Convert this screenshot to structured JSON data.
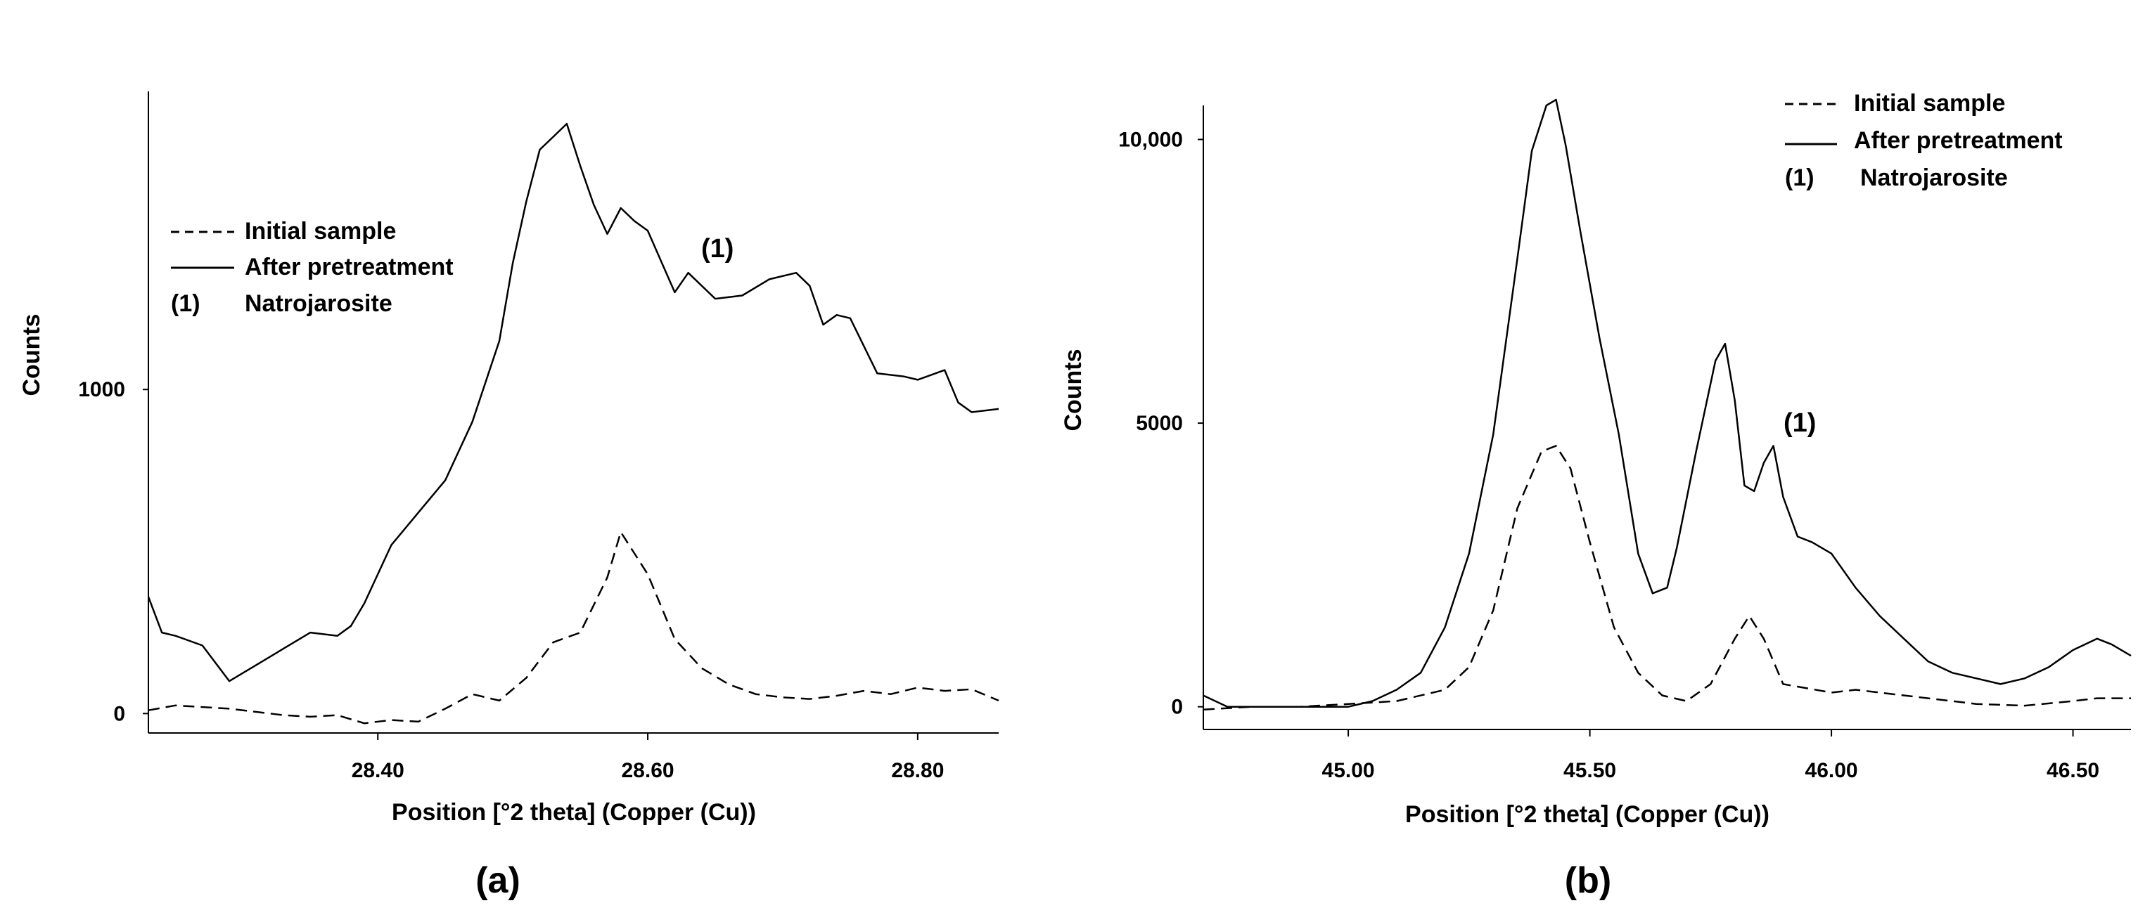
{
  "chart_data": [
    {
      "type": "line",
      "panel_label": "(a)",
      "xlabel": "Position [°2 theta] (Copper (Cu))",
      "ylabel": "Counts",
      "xlim": [
        28.23,
        28.86
      ],
      "ylim": [
        -60,
        1920
      ],
      "xticks": [
        "28.40",
        "28.60",
        "28.80"
      ],
      "xtick_values": [
        28.4,
        28.6,
        28.8
      ],
      "yticks": [
        "0",
        "1000"
      ],
      "ytick_values": [
        0,
        1000
      ],
      "grid": false,
      "legend_position": "left-middle",
      "legend": {
        "initial": "Initial sample",
        "after": "After pretreatment",
        "natro_key": "(1)",
        "natro_label": "Natrojarosite"
      },
      "annotations": [
        {
          "text": "(1)",
          "x": 28.65,
          "y": 1480
        }
      ],
      "series": [
        {
          "name": "Initial sample",
          "style": "dashed",
          "x": [
            28.23,
            28.25,
            28.27,
            28.29,
            28.31,
            28.33,
            28.35,
            28.37,
            28.39,
            28.41,
            28.43,
            28.45,
            28.47,
            28.49,
            28.51,
            28.53,
            28.55,
            28.57,
            28.58,
            28.6,
            28.62,
            28.64,
            28.66,
            28.68,
            28.7,
            28.72,
            28.74,
            28.76,
            28.78,
            28.8,
            28.82,
            28.84,
            28.86
          ],
          "y": [
            10,
            25,
            20,
            15,
            5,
            -5,
            -10,
            -5,
            -30,
            -20,
            -25,
            15,
            60,
            40,
            110,
            220,
            250,
            420,
            560,
            430,
            230,
            140,
            90,
            60,
            50,
            45,
            55,
            70,
            60,
            80,
            70,
            75,
            40
          ]
        },
        {
          "name": "After pretreatment",
          "style": "solid",
          "x": [
            28.23,
            28.24,
            28.25,
            28.27,
            28.29,
            28.31,
            28.33,
            28.35,
            28.37,
            28.38,
            28.39,
            28.41,
            28.43,
            28.45,
            28.47,
            28.49,
            28.5,
            28.51,
            28.52,
            28.53,
            28.54,
            28.55,
            28.56,
            28.57,
            28.58,
            28.59,
            28.6,
            28.62,
            28.63,
            28.65,
            28.67,
            28.69,
            28.71,
            28.72,
            28.73,
            28.74,
            28.75,
            28.77,
            28.79,
            28.8,
            28.82,
            28.83,
            28.84,
            28.86
          ],
          "y": [
            360,
            250,
            240,
            210,
            100,
            150,
            200,
            250,
            240,
            270,
            340,
            520,
            620,
            720,
            900,
            1150,
            1390,
            1580,
            1740,
            1780,
            1820,
            1690,
            1570,
            1480,
            1560,
            1520,
            1490,
            1300,
            1360,
            1280,
            1290,
            1340,
            1360,
            1320,
            1200,
            1230,
            1220,
            1050,
            1040,
            1030,
            1060,
            960,
            930,
            940
          ]
        }
      ]
    },
    {
      "type": "line",
      "panel_label": "(b)",
      "xlabel": "Position [°2 theta] (Copper (Cu))",
      "ylabel": "Counts",
      "xlim": [
        44.7,
        46.62
      ],
      "ylim": [
        -400,
        10600
      ],
      "xticks": [
        "45.00",
        "45.50",
        "46.00",
        "46.50"
      ],
      "xtick_values": [
        45.0,
        45.5,
        46.0,
        46.5
      ],
      "yticks": [
        "0",
        "5000",
        "10,000"
      ],
      "ytick_values": [
        0,
        5000,
        10000
      ],
      "grid": false,
      "legend_position": "top-right",
      "legend": {
        "initial": "Initial sample",
        "after": "After pretreatment",
        "natro_key": "(1)",
        "natro_label": "Natrojarosite"
      },
      "annotations": [
        {
          "text": "(1)",
          "x": 45.88,
          "y": 5000
        }
      ],
      "series": [
        {
          "name": "Initial sample",
          "style": "dashed",
          "x": [
            44.7,
            44.8,
            44.9,
            45.0,
            45.1,
            45.2,
            45.25,
            45.3,
            45.35,
            45.4,
            45.43,
            45.46,
            45.5,
            45.55,
            45.6,
            45.65,
            45.7,
            45.75,
            45.8,
            45.83,
            45.86,
            45.9,
            46.0,
            46.05,
            46.1,
            46.2,
            46.3,
            46.4,
            46.5,
            46.55,
            46.62
          ],
          "y": [
            -50,
            0,
            0,
            50,
            100,
            300,
            700,
            1700,
            3500,
            4500,
            4600,
            4200,
            2900,
            1400,
            600,
            200,
            100,
            400,
            1200,
            1600,
            1200,
            400,
            250,
            300,
            250,
            150,
            50,
            20,
            100,
            150,
            150
          ]
        },
        {
          "name": "After pretreatment",
          "style": "solid",
          "x": [
            44.7,
            44.75,
            44.8,
            44.9,
            45.0,
            45.05,
            45.1,
            45.15,
            45.2,
            45.25,
            45.3,
            45.35,
            45.38,
            45.41,
            45.43,
            45.45,
            45.48,
            45.52,
            45.56,
            45.6,
            45.63,
            45.66,
            45.68,
            45.72,
            45.76,
            45.78,
            45.8,
            45.82,
            45.84,
            45.86,
            45.88,
            45.9,
            45.93,
            45.96,
            46.0,
            46.05,
            46.1,
            46.15,
            46.2,
            46.25,
            46.3,
            46.35,
            46.4,
            46.45,
            46.5,
            46.55,
            46.58,
            46.62
          ],
          "y": [
            200,
            0,
            0,
            0,
            0,
            100,
            300,
            600,
            1400,
            2700,
            4800,
            7900,
            9800,
            10600,
            10700,
            9900,
            8400,
            6500,
            4800,
            2700,
            2000,
            2100,
            2800,
            4500,
            6100,
            6400,
            5400,
            3900,
            3800,
            4300,
            4600,
            3700,
            3000,
            2900,
            2700,
            2100,
            1600,
            1200,
            800,
            600,
            500,
            400,
            500,
            700,
            1000,
            1200,
            1100,
            900
          ]
        }
      ]
    }
  ]
}
